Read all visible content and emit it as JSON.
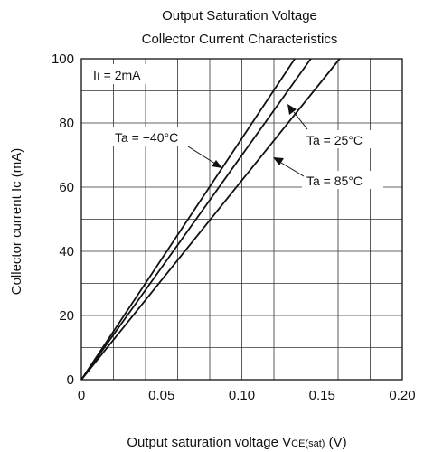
{
  "chart_data": {
    "type": "line",
    "title": [
      "Output Saturation Voltage",
      "Collector Current Characteristics"
    ],
    "xlabel": {
      "main": "Output saturation voltage  V",
      "sub": "CE(sat)",
      "unit": " (V)"
    },
    "ylabel": "Collector current  Ic (mA)",
    "xlim": [
      0,
      0.2
    ],
    "ylim": [
      0,
      100
    ],
    "xticks": [
      0,
      0.05,
      0.1,
      0.15,
      0.2
    ],
    "xtick_labels": [
      "0",
      "0.05",
      "0.10",
      "0.15",
      "0.20"
    ],
    "yticks": [
      0,
      20,
      40,
      60,
      80,
      100
    ],
    "ytick_labels": [
      "0",
      "20",
      "40",
      "60",
      "80",
      "100"
    ],
    "grid": {
      "x_step": 0.02,
      "y_step": 10
    },
    "condition_label": "Iı = 2mA",
    "series": [
      {
        "name": "Ta = −40°C",
        "x": [
          0,
          0.133
        ],
        "y": [
          0,
          100
        ]
      },
      {
        "name": "Ta = 25°C",
        "x": [
          0,
          0.143
        ],
        "y": [
          0,
          100
        ]
      },
      {
        "name": "Ta = 85°C",
        "x": [
          0,
          0.161
        ],
        "y": [
          0,
          100
        ]
      }
    ],
    "line_color": "#111111"
  }
}
